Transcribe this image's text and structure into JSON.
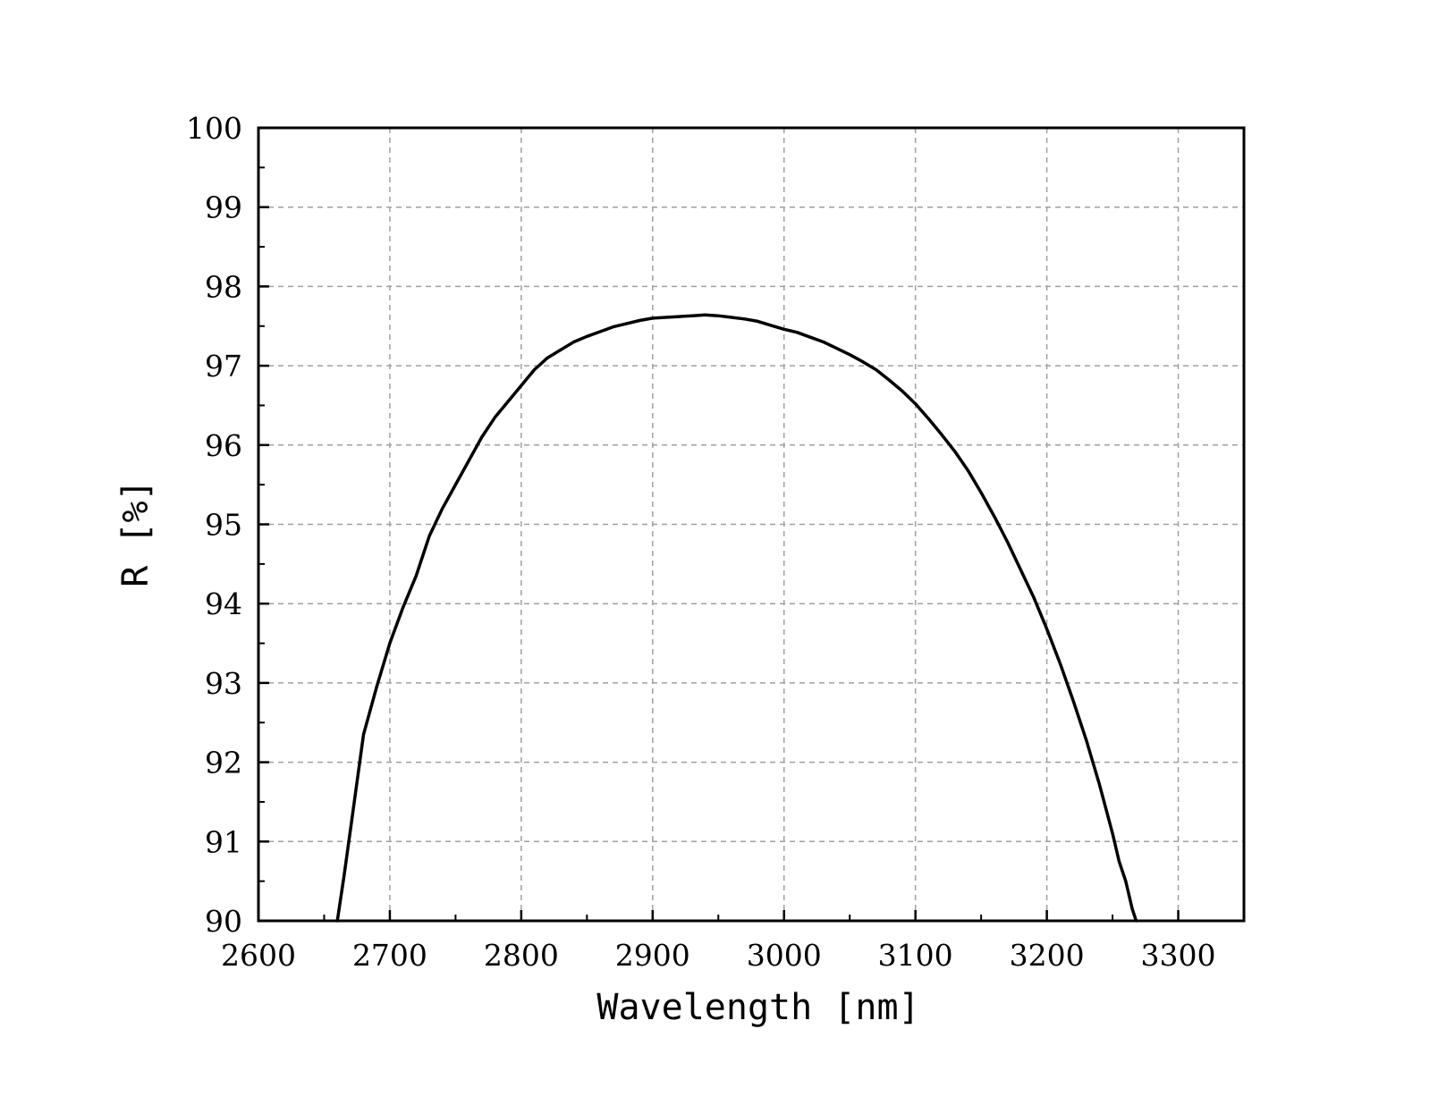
{
  "chart_data": {
    "type": "line",
    "title": "",
    "xlabel": "Wavelength [nm]",
    "ylabel": "R [%]",
    "xlim": [
      2600,
      3350
    ],
    "ylim": [
      90,
      100
    ],
    "x_ticks": [
      2600,
      2700,
      2800,
      2900,
      3000,
      3100,
      3200,
      3300
    ],
    "y_ticks": [
      90,
      91,
      92,
      93,
      94,
      95,
      96,
      97,
      98,
      99,
      100
    ],
    "x_tick_labels": [
      "2600",
      "2700",
      "2800",
      "2900",
      "3000",
      "3100",
      "3200",
      "3300"
    ],
    "y_tick_labels": [
      "90",
      "91",
      "92",
      "93",
      "94",
      "95",
      "96",
      "97",
      "98",
      "99",
      "100"
    ],
    "grid": true,
    "legend": "none",
    "colors": {
      "line": "#000000",
      "grid": "#a0a0a0",
      "axes": "#000000",
      "background": "#ffffff"
    },
    "series": [
      {
        "x": [
          2660,
          2665,
          2670,
          2680,
          2690,
          2700,
          2710,
          2720,
          2730,
          2740,
          2750,
          2760,
          2770,
          2780,
          2790,
          2800,
          2810,
          2820,
          2830,
          2840,
          2850,
          2860,
          2870,
          2880,
          2890,
          2900,
          2910,
          2920,
          2930,
          2940,
          2950,
          2960,
          2970,
          2980,
          2990,
          3000,
          3010,
          3020,
          3030,
          3040,
          3050,
          3060,
          3070,
          3080,
          3090,
          3100,
          3110,
          3120,
          3130,
          3140,
          3150,
          3160,
          3170,
          3180,
          3190,
          3200,
          3210,
          3220,
          3230,
          3240,
          3250,
          3255,
          3260,
          3265,
          3268
        ],
        "y": [
          90.0,
          90.55,
          91.15,
          92.35,
          92.95,
          93.5,
          93.95,
          94.35,
          94.85,
          95.2,
          95.5,
          95.8,
          96.1,
          96.35,
          96.55,
          96.75,
          96.95,
          97.1,
          97.2,
          97.3,
          97.37,
          97.43,
          97.49,
          97.53,
          97.57,
          97.6,
          97.61,
          97.62,
          97.63,
          97.64,
          97.63,
          97.61,
          97.59,
          97.56,
          97.51,
          97.46,
          97.42,
          97.36,
          97.3,
          97.22,
          97.14,
          97.05,
          96.95,
          96.82,
          96.68,
          96.52,
          96.33,
          96.13,
          95.92,
          95.68,
          95.4,
          95.1,
          94.78,
          94.43,
          94.08,
          93.68,
          93.25,
          92.78,
          92.28,
          91.72,
          91.1,
          90.75,
          90.5,
          90.15,
          90.0
        ]
      }
    ]
  }
}
